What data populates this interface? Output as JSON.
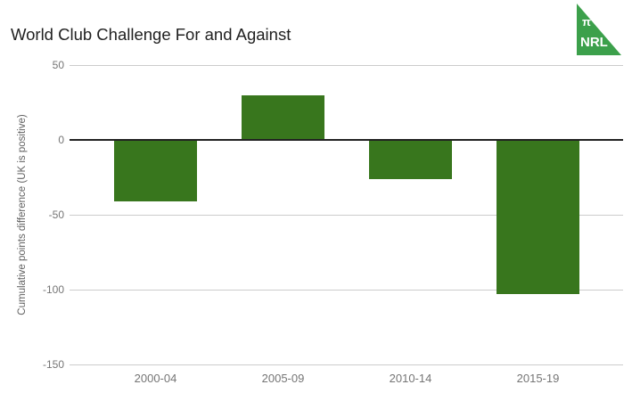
{
  "header": {
    "title": "World Club Challenge For and Against"
  },
  "logo": {
    "pi": "π",
    "nrl": "NRL",
    "color": "#3ca04b"
  },
  "chart_data": {
    "type": "bar",
    "title": "World Club Challenge For and Against",
    "categories": [
      "2000-04",
      "2005-09",
      "2010-14",
      "2015-19"
    ],
    "values": [
      -41,
      30,
      -26,
      -103
    ],
    "xlabel": "",
    "ylabel": "Cumulative points difference (UK is positive)",
    "ylim": [
      -150,
      50
    ],
    "yticks": [
      50,
      0,
      -50,
      -100,
      -150
    ],
    "legend": "none",
    "grid": true,
    "bar_color": "#38761d",
    "gridline_color": "#cccccc",
    "zero_line_color": "#212121",
    "tick_label_color": "#757575",
    "axis_title_color": "#616161",
    "title_color": "#212121"
  }
}
